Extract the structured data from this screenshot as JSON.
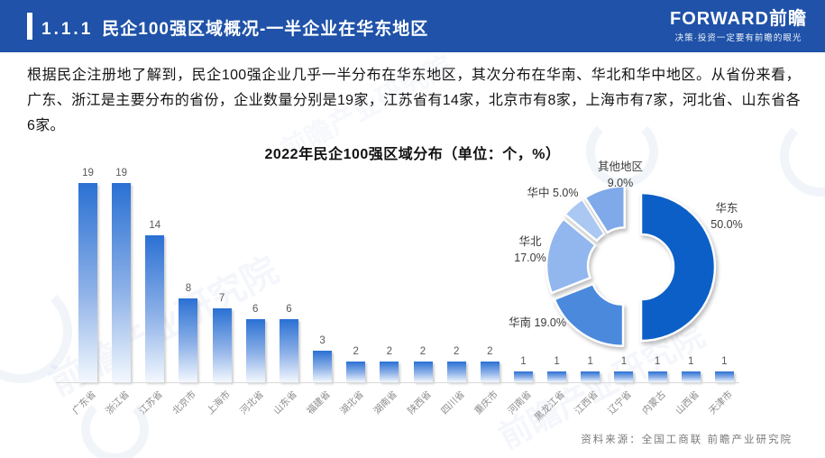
{
  "header": {
    "section_no": "1.1.1",
    "title": "民企100强区域概况-一半企业在华东地区",
    "logo_text": "FORWARD前瞻",
    "logo_tagline": "决策·投资一定要有前瞻的眼光"
  },
  "body_paragraph": "根据民企注册地了解到，民企100强企业几乎一半分布在华东地区，其次分布在华南、华北和华中地区。从省份来看，广东、浙江是主要分布的省份，企业数量分别是19家，江苏省有14家，北京市有8家，上海市有7家，河北省、山东省各6家。",
  "chart_title": "2022年民企100强区域分布（单位：个，%）",
  "source_note": "资料来源：全国工商联  前瞻产业研究院",
  "watermark_text": "前瞻产业研究院",
  "colors": {
    "header_bg": "#1f52a8",
    "bar_gradient_top": "#2a70d3",
    "bar_gradient_bottom": "#f3f8fe",
    "axis": "#d9d9d9",
    "value_label": "#595959",
    "tick_label": "#8c8c8c",
    "source_text": "#7a7a7a"
  },
  "chart_data": [
    {
      "type": "bar",
      "title": "2022年民企100强区域分布（单位：个，%）",
      "categories": [
        "广东省",
        "浙江省",
        "江苏省",
        "北京市",
        "上海市",
        "河北省",
        "山东省",
        "福建省",
        "湖北省",
        "湖南省",
        "陕西省",
        "四川省",
        "重庆市",
        "河南省",
        "黑龙江省",
        "江西省",
        "辽宁省",
        "内蒙古",
        "山西省",
        "天津市"
      ],
      "values": [
        19,
        19,
        14,
        8,
        7,
        6,
        6,
        3,
        2,
        2,
        2,
        2,
        2,
        1,
        1,
        1,
        1,
        1,
        1,
        1
      ],
      "xlabel": "",
      "ylabel": "",
      "ylim": [
        0,
        20
      ],
      "grid": false,
      "value_labels_shown": true
    },
    {
      "type": "pie",
      "subtype": "donut-exploded",
      "segments": [
        {
          "label": "华东",
          "value": 50,
          "pct_label": "50.0%",
          "color": "#0c5fc7"
        },
        {
          "label": "华南",
          "value": 19,
          "pct_label": "19.0%",
          "color": "#4b89dd"
        },
        {
          "label": "华北",
          "value": 17,
          "pct_label": "17.0%",
          "color": "#92b6ee"
        },
        {
          "label": "华中",
          "value": 5,
          "pct_label": "5.0%",
          "color": "#abc8f3"
        },
        {
          "label": "其他地区",
          "value": 9,
          "pct_label": "9.0%",
          "color": "#7fa9e9"
        }
      ],
      "legend_position": "labels-around-donut",
      "start_angle_deg_from_top": 0,
      "direction": "clockwise"
    }
  ]
}
